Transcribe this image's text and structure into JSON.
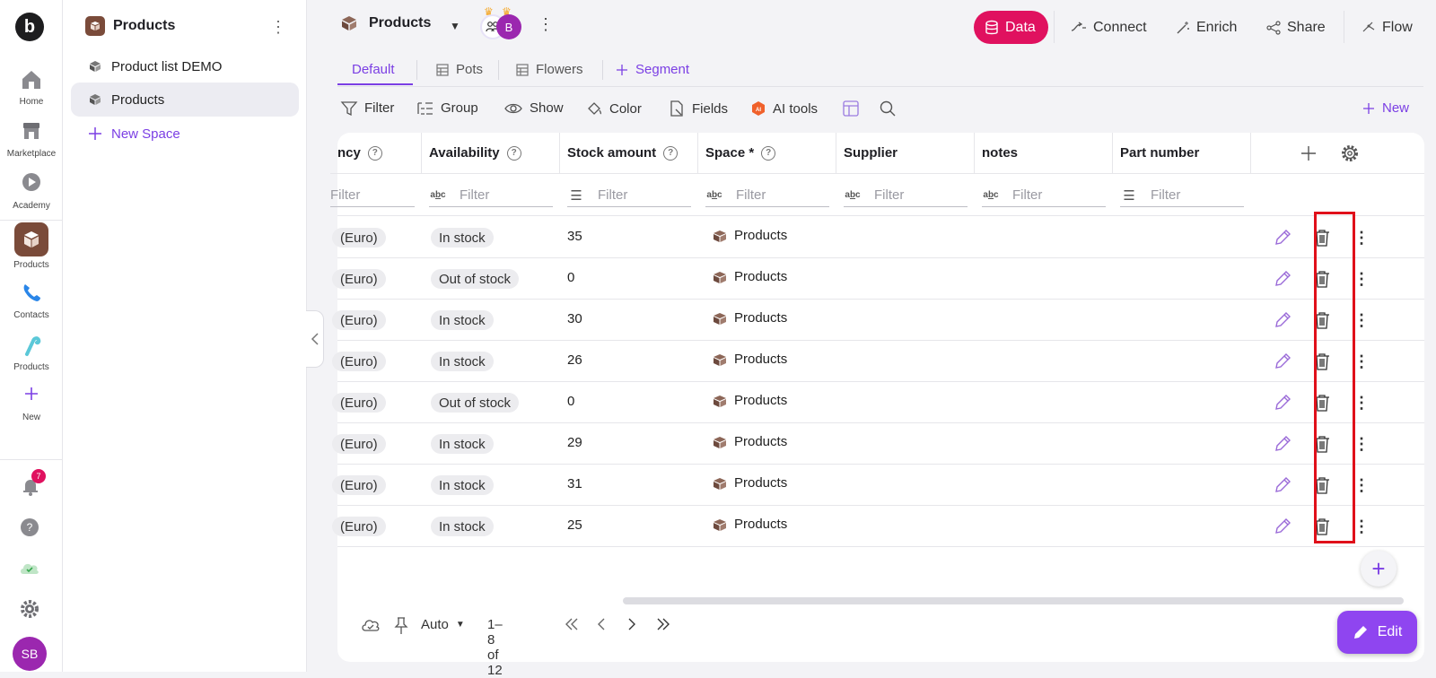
{
  "rail": {
    "logo": "b",
    "items": [
      {
        "label": "Home",
        "icon": "home-icon"
      },
      {
        "label": "Marketplace",
        "icon": "store-icon"
      },
      {
        "label": "Academy",
        "icon": "play-icon"
      },
      {
        "label": "Products",
        "icon": "box-icon"
      },
      {
        "label": "Contacts",
        "icon": "phone-icon"
      },
      {
        "label": "Products",
        "icon": "candy-cane-icon"
      },
      {
        "label": "New",
        "icon": "plus-icon"
      }
    ],
    "notifications": "7",
    "avatar": "SB"
  },
  "sidebar": {
    "title": "Products",
    "items": [
      {
        "label": "Product list DEMO"
      },
      {
        "label": "Products"
      }
    ],
    "new_space": "New Space"
  },
  "topbar": {
    "title": "Products",
    "avatar_initial": "B",
    "buttons": {
      "data": "Data",
      "connect": "Connect",
      "enrich": "Enrich",
      "share": "Share",
      "flow": "Flow"
    },
    "accent": "#e0115f"
  },
  "tabs": [
    "Default",
    "Pots",
    "Flowers",
    "Segment"
  ],
  "toolbar": {
    "filter": "Filter",
    "group": "Group",
    "show": "Show",
    "color": "Color",
    "fields": "Fields",
    "ai_tools": "AI tools",
    "new": "New"
  },
  "table": {
    "columns": [
      "ncy",
      "Availability",
      "Stock amount",
      "Space *",
      "Supplier",
      "notes",
      "Part number"
    ],
    "filter_placeholder": "Filter",
    "rows": [
      {
        "currency": "(Euro)",
        "availability": "In stock",
        "stock": "35",
        "space": "Products"
      },
      {
        "currency": "(Euro)",
        "availability": "Out of stock",
        "stock": "0",
        "space": "Products"
      },
      {
        "currency": "(Euro)",
        "availability": "In stock",
        "stock": "30",
        "space": "Products"
      },
      {
        "currency": "(Euro)",
        "availability": "In stock",
        "stock": "26",
        "space": "Products"
      },
      {
        "currency": "(Euro)",
        "availability": "Out of stock",
        "stock": "0",
        "space": "Products"
      },
      {
        "currency": "(Euro)",
        "availability": "In stock",
        "stock": "29",
        "space": "Products"
      },
      {
        "currency": "(Euro)",
        "availability": "In stock",
        "stock": "31",
        "space": "Products"
      },
      {
        "currency": "(Euro)",
        "availability": "In stock",
        "stock": "25",
        "space": "Products"
      }
    ]
  },
  "footer": {
    "row_height": "Auto",
    "pagination": "1–8 of 12"
  },
  "edit_button": "Edit"
}
